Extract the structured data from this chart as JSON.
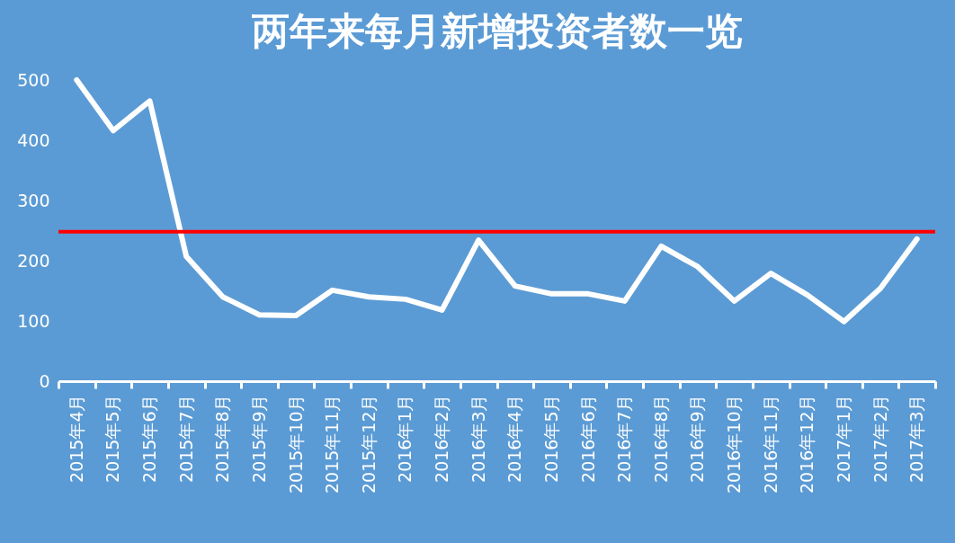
{
  "chart_data": {
    "type": "line",
    "title": "两年来每月新增投资者数一览",
    "categories": [
      "2015年4月",
      "2015年5月",
      "2015年6月",
      "2015年7月",
      "2015年8月",
      "2015年9月",
      "2015年10月",
      "2015年11月",
      "2015年12月",
      "2016年1月",
      "2016年2月",
      "2016年3月",
      "2016年4月",
      "2016年5月",
      "2016年6月",
      "2016年7月",
      "2016年8月",
      "2016年9月",
      "2016年10月",
      "2016年11月",
      "2016年12月",
      "2017年1月",
      "2017年2月",
      "2017年3月"
    ],
    "series": [
      {
        "color": "#ffffff",
        "values": [
          500,
          416,
          465,
          207,
          140,
          110,
          109,
          151,
          140,
          136,
          118,
          234,
          158,
          145,
          145,
          133,
          224,
          190,
          133,
          179,
          143,
          99,
          154,
          236
        ]
      }
    ],
    "ylim": [
      0,
      500
    ],
    "yticks": [
      0,
      100,
      200,
      300,
      400,
      500
    ],
    "ref_lines": [
      {
        "axis": "y",
        "value": 248,
        "color": "#ff0000"
      }
    ],
    "grid": false,
    "line_style": "solid"
  }
}
